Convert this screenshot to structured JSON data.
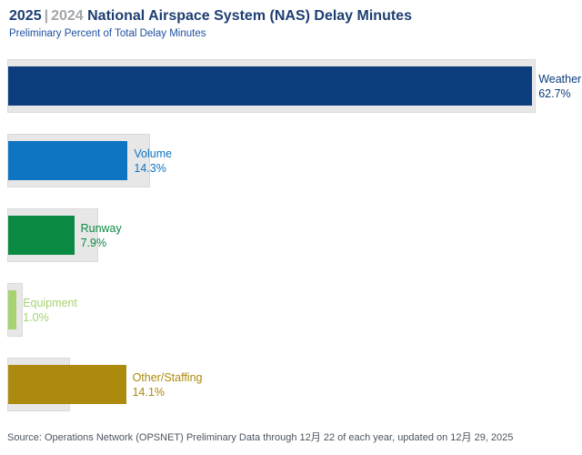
{
  "header": {
    "year_current": "2025",
    "separator": "|",
    "year_prior": "2024",
    "title_text": "National Airspace System (NAS) Delay Minutes",
    "subtitle": "Preliminary Percent of Total Delay Minutes"
  },
  "source_note": "Source: Operations Network (OPSNET) Preliminary Data through 12月 22 of each year, updated on 12月 29, 2025",
  "colors": {
    "title_navy": "#1d3e72",
    "title_gray": "#a2a6aa",
    "subtitle_blue": "#1e4fa0",
    "track_gray": "#e7e7e7",
    "source_gray": "#4b5560",
    "weather": "#0c3e7d",
    "volume": "#0e75c2",
    "runway": "#0a8a43",
    "equipment": "#a6d36f",
    "other_staffing": "#ac8a0e"
  },
  "chart_data": {
    "type": "bar",
    "orientation": "horizontal",
    "title": "2025 | 2024 National Airspace System (NAS) Delay Minutes",
    "subtitle": "Preliminary Percent of Total Delay Minutes",
    "legend_position": "none",
    "grid": false,
    "axes_visible": false,
    "xlim": [
      0,
      63.2
    ],
    "categories": [
      "Weather",
      "Volume",
      "Runway",
      "Equipment",
      "Other/Staffing"
    ],
    "series": [
      {
        "name": "2025",
        "values": [
          62.7,
          14.3,
          7.9,
          1.0,
          14.1
        ]
      },
      {
        "name": "2024",
        "values": [
          63.2,
          17.1,
          10.9,
          1.9,
          7.5
        ],
        "note": "unlabeled gray background bars, values estimated from bar lengths"
      }
    ],
    "rows": [
      {
        "label": "Weather",
        "pct_label": "62.7%",
        "value_2025": 62.7,
        "value_2024_est": 63.2,
        "color": "#0c3e7d"
      },
      {
        "label": "Volume",
        "pct_label": "14.3%",
        "value_2025": 14.3,
        "value_2024_est": 17.1,
        "color": "#0e75c2"
      },
      {
        "label": "Runway",
        "pct_label": "7.9%",
        "value_2025": 7.9,
        "value_2024_est": 10.9,
        "color": "#0a8a43"
      },
      {
        "label": "Equipment",
        "pct_label": "1.0%",
        "value_2025": 1.0,
        "value_2024_est": 1.9,
        "color": "#a6d36f"
      },
      {
        "label": "Other/Staffing",
        "pct_label": "14.1%",
        "value_2025": 14.1,
        "value_2024_est": 7.5,
        "color": "#ac8a0e"
      }
    ]
  }
}
